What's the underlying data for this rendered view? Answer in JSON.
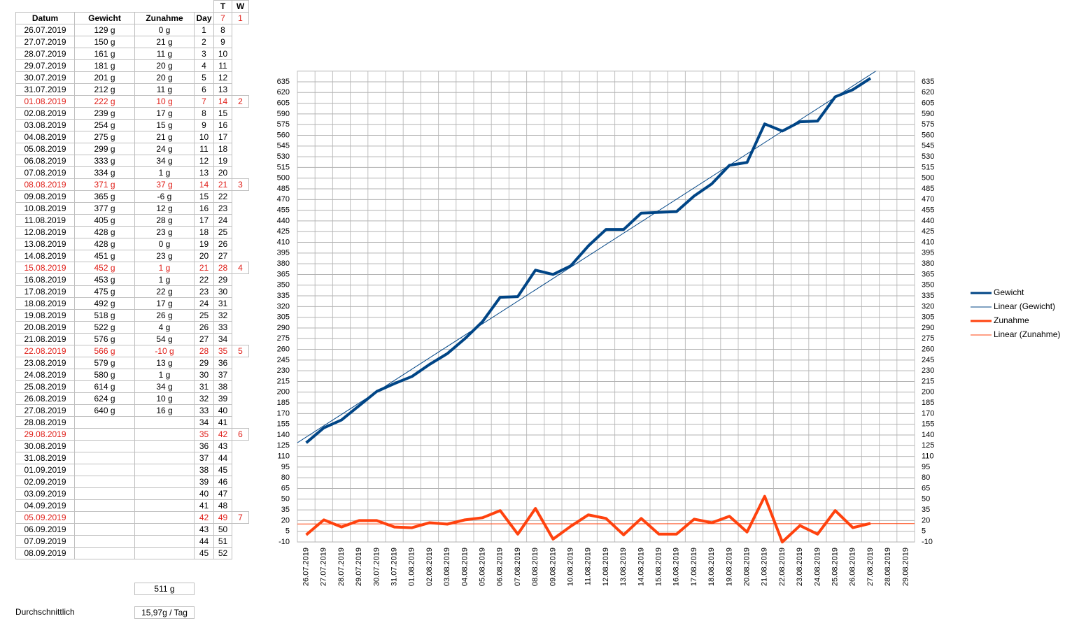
{
  "table": {
    "header_top": [
      "T",
      "W"
    ],
    "header": [
      "Datum",
      "Gewicht",
      "Zunahme",
      "Day",
      7,
      1
    ],
    "rows": [
      {
        "datum": "26.07.2019",
        "gewicht": "129 g",
        "zunahme": "0 g",
        "day": 1,
        "t": 8
      },
      {
        "datum": "27.07.2019",
        "gewicht": "150 g",
        "zunahme": "21 g",
        "day": 2,
        "t": 9
      },
      {
        "datum": "28.07.2019",
        "gewicht": "161 g",
        "zunahme": "11 g",
        "day": 3,
        "t": 10
      },
      {
        "datum": "29.07.2019",
        "gewicht": "181 g",
        "zunahme": "20 g",
        "day": 4,
        "t": 11
      },
      {
        "datum": "30.07.2019",
        "gewicht": "201 g",
        "zunahme": "20 g",
        "day": 5,
        "t": 12
      },
      {
        "datum": "31.07.2019",
        "gewicht": "212 g",
        "zunahme": "11 g",
        "day": 6,
        "t": 13
      },
      {
        "datum": "01.08.2019",
        "gewicht": "222 g",
        "zunahme": "10 g",
        "day": 7,
        "t": 14,
        "w": 2
      },
      {
        "datum": "02.08.2019",
        "gewicht": "239 g",
        "zunahme": "17 g",
        "day": 8,
        "t": 15
      },
      {
        "datum": "03.08.2019",
        "gewicht": "254 g",
        "zunahme": "15 g",
        "day": 9,
        "t": 16
      },
      {
        "datum": "04.08.2019",
        "gewicht": "275 g",
        "zunahme": "21 g",
        "day": 10,
        "t": 17
      },
      {
        "datum": "05.08.2019",
        "gewicht": "299 g",
        "zunahme": "24 g",
        "day": 11,
        "t": 18
      },
      {
        "datum": "06.08.2019",
        "gewicht": "333 g",
        "zunahme": "34 g",
        "day": 12,
        "t": 19
      },
      {
        "datum": "07.08.2019",
        "gewicht": "334 g",
        "zunahme": "1 g",
        "day": 13,
        "t": 20
      },
      {
        "datum": "08.08.2019",
        "gewicht": "371 g",
        "zunahme": "37 g",
        "day": 14,
        "t": 21,
        "w": 3
      },
      {
        "datum": "09.08.2019",
        "gewicht": "365 g",
        "zunahme": "-6 g",
        "day": 15,
        "t": 22
      },
      {
        "datum": "10.08.2019",
        "gewicht": "377 g",
        "zunahme": "12 g",
        "day": 16,
        "t": 23
      },
      {
        "datum": "11.08.2019",
        "gewicht": "405 g",
        "zunahme": "28 g",
        "day": 17,
        "t": 24
      },
      {
        "datum": "12.08.2019",
        "gewicht": "428 g",
        "zunahme": "23 g",
        "day": 18,
        "t": 25
      },
      {
        "datum": "13.08.2019",
        "gewicht": "428 g",
        "zunahme": "0 g",
        "day": 19,
        "t": 26
      },
      {
        "datum": "14.08.2019",
        "gewicht": "451 g",
        "zunahme": "23 g",
        "day": 20,
        "t": 27
      },
      {
        "datum": "15.08.2019",
        "gewicht": "452 g",
        "zunahme": "1 g",
        "day": 21,
        "t": 28,
        "w": 4
      },
      {
        "datum": "16.08.2019",
        "gewicht": "453 g",
        "zunahme": "1 g",
        "day": 22,
        "t": 29
      },
      {
        "datum": "17.08.2019",
        "gewicht": "475 g",
        "zunahme": "22 g",
        "day": 23,
        "t": 30
      },
      {
        "datum": "18.08.2019",
        "gewicht": "492 g",
        "zunahme": "17 g",
        "day": 24,
        "t": 31
      },
      {
        "datum": "19.08.2019",
        "gewicht": "518 g",
        "zunahme": "26 g",
        "day": 25,
        "t": 32
      },
      {
        "datum": "20.08.2019",
        "gewicht": "522 g",
        "zunahme": "4 g",
        "day": 26,
        "t": 33
      },
      {
        "datum": "21.08.2019",
        "gewicht": "576 g",
        "zunahme": "54 g",
        "day": 27,
        "t": 34
      },
      {
        "datum": "22.08.2019",
        "gewicht": "566 g",
        "zunahme": "-10 g",
        "day": 28,
        "t": 35,
        "w": 5
      },
      {
        "datum": "23.08.2019",
        "gewicht": "579 g",
        "zunahme": "13 g",
        "day": 29,
        "t": 36
      },
      {
        "datum": "24.08.2019",
        "gewicht": "580 g",
        "zunahme": "1 g",
        "day": 30,
        "t": 37
      },
      {
        "datum": "25.08.2019",
        "gewicht": "614 g",
        "zunahme": "34 g",
        "day": 31,
        "t": 38
      },
      {
        "datum": "26.08.2019",
        "gewicht": "624 g",
        "zunahme": "10 g",
        "day": 32,
        "t": 39
      },
      {
        "datum": "27.08.2019",
        "gewicht": "640 g",
        "zunahme": "16 g",
        "day": 33,
        "t": 40
      },
      {
        "datum": "28.08.2019",
        "day": 34,
        "t": 41
      },
      {
        "datum": "29.08.2019",
        "day": 35,
        "t": 42,
        "w": 6
      },
      {
        "datum": "30.08.2019",
        "day": 36,
        "t": 43
      },
      {
        "datum": "31.08.2019",
        "day": 37,
        "t": 44
      },
      {
        "datum": "01.09.2019",
        "day": 38,
        "t": 45
      },
      {
        "datum": "02.09.2019",
        "day": 39,
        "t": 46
      },
      {
        "datum": "03.09.2019",
        "day": 40,
        "t": 47
      },
      {
        "datum": "04.09.2019",
        "day": 41,
        "t": 48
      },
      {
        "datum": "05.09.2019",
        "day": 42,
        "t": 49,
        "w": 7
      },
      {
        "datum": "06.09.2019",
        "day": 43,
        "t": 50
      },
      {
        "datum": "07.09.2019",
        "day": 44,
        "t": 51
      },
      {
        "datum": "08.09.2019",
        "day": 45,
        "t": 52
      }
    ],
    "total": "511 g",
    "average_label": "Durchschnittlich",
    "average": "15,97g / Tag"
  },
  "chart_data": {
    "type": "line",
    "categories": [
      "26.07.2019",
      "27.07.2019",
      "28.07.2019",
      "29.07.2019",
      "30.07.2019",
      "31.07.2019",
      "01.08.2019",
      "02.08.2019",
      "03.08.2019",
      "04.08.2019",
      "05.08.2019",
      "06.08.2019",
      "07.08.2019",
      "08.08.2019",
      "09.08.2019",
      "10.08.2019",
      "11.08.2019",
      "12.08.2019",
      "13.08.2019",
      "14.08.2019",
      "15.08.2019",
      "16.08.2019",
      "17.08.2019",
      "18.08.2019",
      "19.08.2019",
      "20.08.2019",
      "21.08.2019",
      "22.08.2019",
      "23.08.2019",
      "24.08.2019",
      "25.08.2019",
      "26.08.2019",
      "27.08.2019",
      "28.08.2019",
      "29.08.2019"
    ],
    "ylim": [
      -10,
      650
    ],
    "yticks": [
      -10,
      5,
      20,
      35,
      50,
      65,
      80,
      95,
      110,
      125,
      140,
      155,
      170,
      185,
      200,
      215,
      230,
      245,
      260,
      275,
      290,
      305,
      320,
      335,
      350,
      365,
      380,
      395,
      410,
      425,
      440,
      455,
      470,
      485,
      500,
      515,
      530,
      545,
      560,
      575,
      590,
      605,
      620,
      635
    ],
    "grid": true,
    "series": [
      {
        "name": "Gewicht",
        "color": "#004586",
        "values": [
          129,
          150,
          161,
          181,
          201,
          212,
          222,
          239,
          254,
          275,
          299,
          333,
          334,
          371,
          365,
          377,
          405,
          428,
          428,
          451,
          452,
          453,
          475,
          492,
          518,
          522,
          576,
          566,
          579,
          580,
          614,
          624,
          640,
          null,
          null
        ]
      },
      {
        "name": "Zunahme",
        "color": "#ff420e",
        "values": [
          0,
          21,
          11,
          20,
          20,
          11,
          10,
          17,
          15,
          21,
          24,
          34,
          1,
          37,
          -6,
          12,
          28,
          23,
          0,
          23,
          1,
          1,
          22,
          17,
          26,
          4,
          54,
          -10,
          13,
          1,
          34,
          10,
          16,
          null,
          null
        ]
      }
    ],
    "trendlines": [
      {
        "name": "Linear (Gewicht)",
        "color": "#004586",
        "series": 0
      },
      {
        "name": "Linear (Zunahme)",
        "color": "#ff420e",
        "series": 1
      }
    ]
  }
}
